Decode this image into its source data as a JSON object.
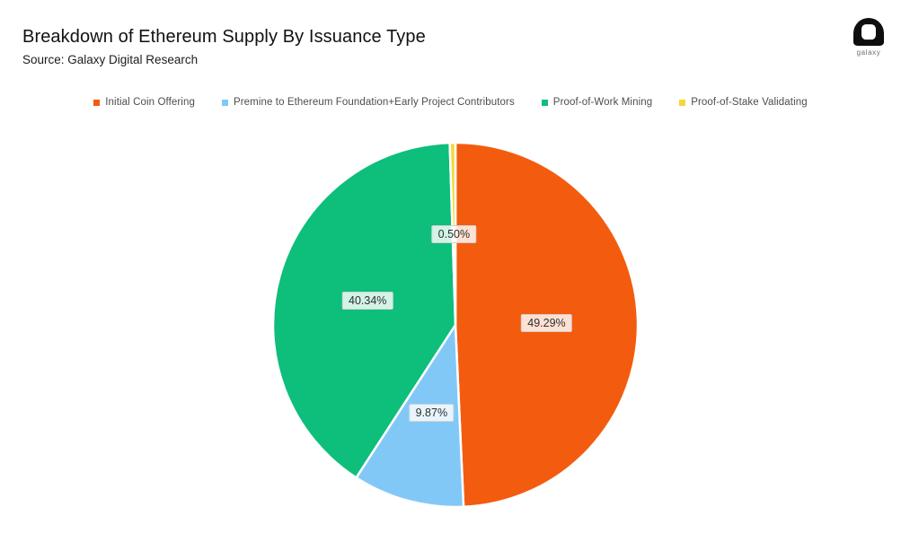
{
  "page": {
    "background": "#FFFFFF"
  },
  "header": {
    "title": "Breakdown of Ethereum Supply By Issuance Type",
    "subtitle": "Source: Galaxy Digital Research"
  },
  "logo": {
    "brand": "galaxy"
  },
  "chart_data": {
    "type": "pie",
    "title": "Breakdown of Ethereum Supply By Issuance Type",
    "source": "Source: Galaxy Digital Research",
    "direction": "clockwise",
    "start_angle_deg": 0,
    "donut": false,
    "legend_position": "top",
    "slice_border_color": "#FFFFFF",
    "label_radius_fraction": 0.5,
    "slices": [
      {
        "label": "Initial Coin Offering",
        "value": 49.29,
        "display": "49.29%",
        "color": "#F35C0F"
      },
      {
        "label": "Premine to Ethereum Foundation+Early Project Contributors",
        "value": 9.87,
        "display": "9.87%",
        "color": "#82C8F7"
      },
      {
        "label": "Proof-of-Work Mining",
        "value": 40.34,
        "display": "40.34%",
        "color": "#0EBE7B"
      },
      {
        "label": "Proof-of-Stake Validating",
        "value": 0.5,
        "display": "0.50%",
        "color": "#F2D93B"
      }
    ]
  }
}
